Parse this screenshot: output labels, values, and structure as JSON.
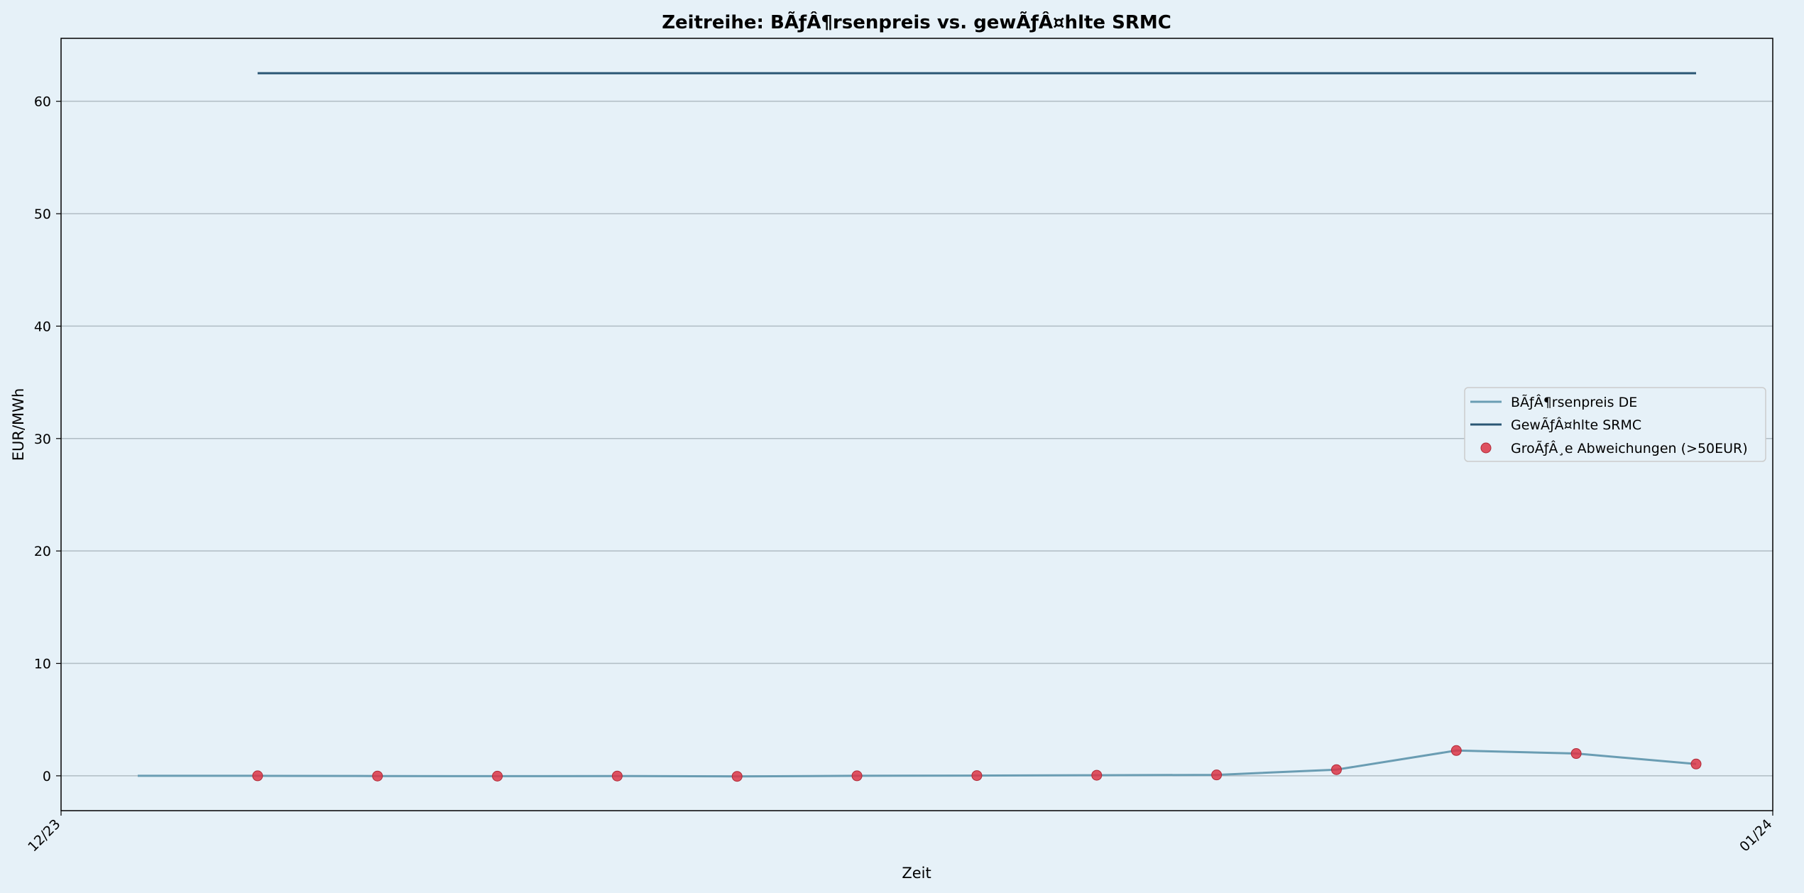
{
  "chart_data": {
    "type": "line",
    "title": "Zeitreihe: BÃƒÂ¶rsenpreis vs. gewÃƒÂ¤hlte SRMC",
    "xlabel": "Zeit",
    "ylabel": "EUR/MWh",
    "x_ticks": [
      "12/23",
      "01/24"
    ],
    "y_ticks": [
      0,
      10,
      20,
      30,
      40,
      50,
      60
    ],
    "ylim": [
      -3.1,
      65.6
    ],
    "grid": "horizontal",
    "legend_position": "center-right",
    "series": [
      {
        "name": "BÃƒÂ¶rsenpreis DE",
        "kind": "line",
        "color": "#6a9db3",
        "points": [
          [
            0,
            0.0
          ],
          [
            1,
            0.0
          ],
          [
            2,
            -0.02
          ],
          [
            3,
            -0.03
          ],
          [
            4,
            -0.02
          ],
          [
            5,
            -0.05
          ],
          [
            6,
            0.0
          ],
          [
            7,
            0.02
          ],
          [
            8,
            0.05
          ],
          [
            9,
            0.08
          ],
          [
            10,
            0.55
          ],
          [
            11,
            2.25
          ],
          [
            12,
            1.98
          ],
          [
            13,
            1.05
          ]
        ]
      },
      {
        "name": "GewÃƒÂ¤hlte SRMC",
        "kind": "line",
        "color": "#2a5674",
        "points": [
          [
            1,
            62.5
          ],
          [
            13,
            62.5
          ]
        ]
      },
      {
        "name": "GroÃƒÂ¸e Abweichungen (>50EUR)",
        "kind": "scatter",
        "color": "#dc3545",
        "points": [
          [
            1,
            0.0
          ],
          [
            2,
            -0.02
          ],
          [
            3,
            -0.03
          ],
          [
            4,
            -0.02
          ],
          [
            5,
            -0.05
          ],
          [
            6,
            0.0
          ],
          [
            7,
            0.02
          ],
          [
            8,
            0.05
          ],
          [
            9,
            0.08
          ],
          [
            10,
            0.55
          ],
          [
            11,
            2.25
          ],
          [
            12,
            1.98
          ],
          [
            13,
            1.05
          ]
        ]
      }
    ]
  }
}
